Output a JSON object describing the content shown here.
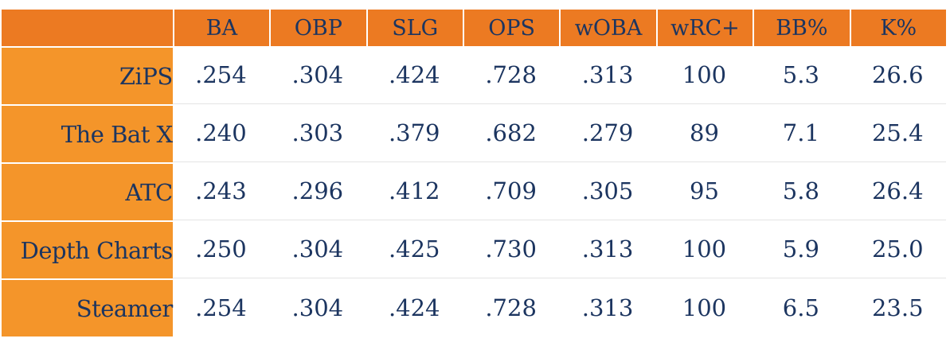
{
  "chart_data": {
    "type": "table",
    "columns": [
      "BA",
      "OBP",
      "SLG",
      "OPS",
      "wOBA",
      "wRC+",
      "BB%",
      "K%"
    ],
    "rows": [
      {
        "label": "ZiPS",
        "values": [
          ".254",
          ".304",
          ".424",
          ".728",
          ".313",
          "100",
          "5.3",
          "26.6"
        ]
      },
      {
        "label": "The Bat X",
        "values": [
          ".240",
          ".303",
          ".379",
          ".682",
          ".279",
          "89",
          "7.1",
          "25.4"
        ]
      },
      {
        "label": "ATC",
        "values": [
          ".243",
          ".296",
          ".412",
          ".709",
          ".305",
          "95",
          "5.8",
          "26.4"
        ]
      },
      {
        "label": "Depth Charts",
        "values": [
          ".250",
          ".304",
          ".425",
          ".730",
          ".313",
          "100",
          "5.9",
          "25.0"
        ]
      },
      {
        "label": "Steamer",
        "values": [
          ".254",
          ".304",
          ".424",
          ".728",
          ".313",
          "100",
          "6.5",
          "23.5"
        ]
      }
    ]
  },
  "colors": {
    "header_bg": "#ec7a22",
    "row_label_bg": "#f4952a",
    "text": "#1c3560"
  }
}
